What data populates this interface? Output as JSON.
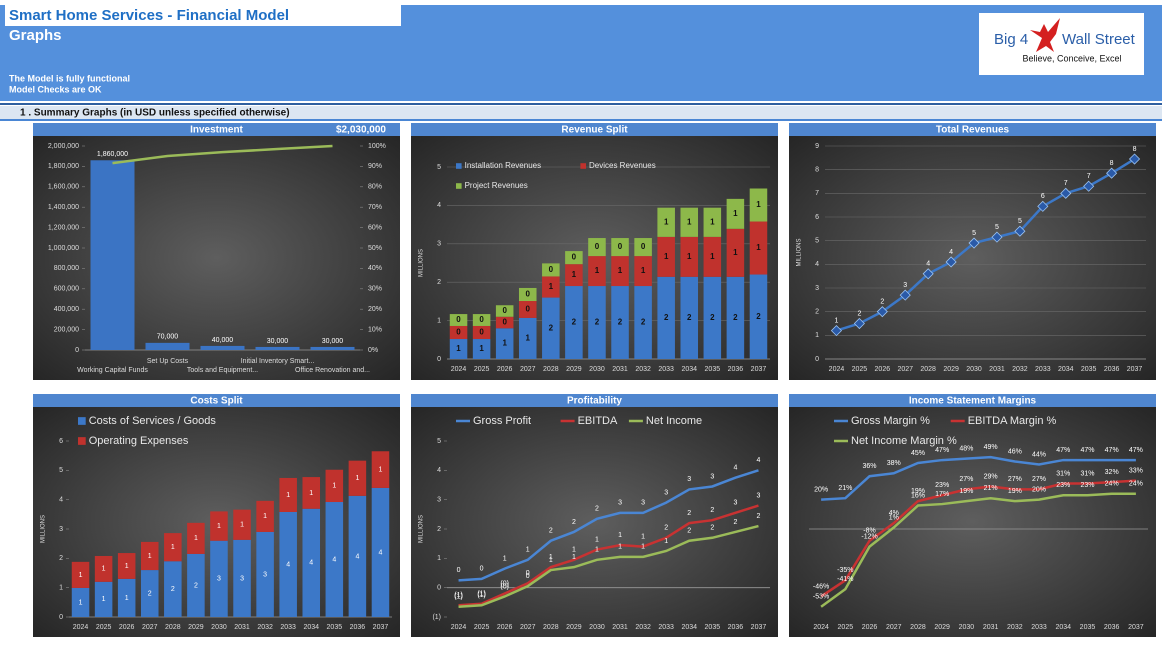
{
  "header": {
    "title": "Smart Home Services - Financial Model",
    "subtitle": "Graphs",
    "status": [
      "The Model is fully functional",
      "Model Checks are OK"
    ],
    "logo": {
      "left": "Big 4",
      "right": "Wall Street",
      "tagline": "Believe, Conceive, Excel"
    }
  },
  "section": "1 . Summary Graphs (in USD unless specified otherwise)",
  "chart_data": [
    {
      "type": "bar",
      "title": "Investment",
      "subtitle": "$2,030,000",
      "categories": [
        "Working Capital Funds",
        "Set Up Costs",
        "Tools and Equipment...",
        "Initial Inventory Smart...",
        "Office Renovation and..."
      ],
      "series": [
        {
          "color": "#3b74c4",
          "values": [
            1860000,
            70000,
            40000,
            30000,
            30000
          ],
          "value_labels": [
            "1,860,000",
            "70,000",
            "40,000",
            "30,000",
            "30,000"
          ]
        },
        {
          "type": "line",
          "axis": "y2",
          "color": "#9bbb59",
          "values": [
            91.6,
            95.1,
            97.0,
            98.5,
            100
          ]
        }
      ],
      "ylim": [
        0,
        2000000
      ],
      "yticks": [
        0,
        {
          "value": 200000,
          "label": "200,000"
        },
        {
          "value": 400000,
          "label": "400,000"
        },
        {
          "value": 600000,
          "label": "600,000"
        },
        {
          "value": 800000,
          "label": "800,000"
        },
        {
          "value": 1000000,
          "label": "1,000,000"
        },
        {
          "value": 1200000,
          "label": "1,200,000"
        },
        {
          "value": 1400000,
          "label": "1,400,000"
        },
        {
          "value": 1600000,
          "label": "1,600,000"
        },
        {
          "value": 1800000,
          "label": "1,800,000"
        },
        {
          "value": 2000000,
          "label": "2,000,000"
        }
      ],
      "y2lim": [
        0,
        100
      ],
      "y2ticks": [
        {
          "value": 0,
          "label": "0%"
        },
        {
          "value": 10,
          "label": "10%"
        },
        {
          "value": 20,
          "label": "20%"
        },
        {
          "value": 30,
          "label": "30%"
        },
        {
          "value": 40,
          "label": "40%"
        },
        {
          "value": 50,
          "label": "50%"
        },
        {
          "value": 60,
          "label": "60%"
        },
        {
          "value": 70,
          "label": "70%"
        },
        {
          "value": 80,
          "label": "80%"
        },
        {
          "value": 90,
          "label": "90%"
        },
        {
          "value": 100,
          "label": "100%"
        }
      ],
      "grid": false
    },
    {
      "type": "stacked_bar",
      "title": "Revenue Split",
      "y_label": "MILLIONS",
      "categories": [
        "2024",
        "2025",
        "2026",
        "2027",
        "2028",
        "2029",
        "2030",
        "2031",
        "2032",
        "2033",
        "2034",
        "2035",
        "2036",
        "2037"
      ],
      "series": [
        {
          "name": "Installation Revenues",
          "color": "#3c78c8",
          "values": [
            0.52,
            0.52,
            0.8,
            1.07,
            1.6,
            1.9,
            1.9,
            1.9,
            1.9,
            2.14,
            2.14,
            2.14,
            2.14,
            2.2
          ],
          "value_labels": [
            "1",
            "1",
            "1",
            "1",
            "2",
            "2",
            "2",
            "2",
            "2",
            "2",
            "2",
            "2",
            "2",
            "2"
          ]
        },
        {
          "name": "Devices Revenues",
          "color": "#c0322d",
          "values": [
            0.34,
            0.34,
            0.3,
            0.44,
            0.55,
            0.57,
            0.78,
            0.78,
            0.78,
            1.04,
            1.04,
            1.04,
            1.25,
            1.38
          ],
          "value_labels": [
            "0",
            "0",
            "0",
            "0",
            "1",
            "1",
            "1",
            "1",
            "1",
            "1",
            "1",
            "1",
            "1",
            "1"
          ]
        },
        {
          "name": "Project Revenues",
          "color": "#8db84a",
          "values": [
            0.31,
            0.31,
            0.3,
            0.34,
            0.34,
            0.34,
            0.47,
            0.47,
            0.47,
            0.76,
            0.76,
            0.76,
            0.78,
            0.86
          ],
          "value_labels": [
            "0",
            "0",
            "0",
            "0",
            "0",
            "0",
            "0",
            "0",
            "0",
            "1",
            "1",
            "1",
            "1",
            "1"
          ]
        }
      ],
      "ylim": [
        0,
        5
      ],
      "yticks": [
        0,
        1,
        2,
        3,
        4,
        5
      ],
      "grid": true
    },
    {
      "type": "line",
      "title": "Total Revenues",
      "y_label": "MILLIONS",
      "markers": true,
      "categories": [
        "2024",
        "2025",
        "2026",
        "2027",
        "2028",
        "2029",
        "2030",
        "2031",
        "2032",
        "2033",
        "2034",
        "2035",
        "2036",
        "2037"
      ],
      "series": [
        {
          "color": "#3c78c8",
          "values": [
            1.2,
            1.5,
            2.0,
            2.7,
            3.6,
            4.1,
            4.9,
            5.15,
            5.4,
            6.45,
            7.0,
            7.3,
            7.85,
            8.45
          ],
          "value_labels": [
            "1",
            "2",
            "2",
            "3",
            "4",
            "4",
            "5",
            "5",
            "5",
            "6",
            "7",
            "7",
            "8",
            "8"
          ]
        }
      ],
      "ylim": [
        0,
        9
      ],
      "yticks": [
        0,
        1,
        2,
        3,
        4,
        5,
        6,
        7,
        8,
        9
      ],
      "grid": true
    },
    {
      "type": "stacked_bar",
      "title": "Costs Split",
      "y_label": "MILLIONS",
      "categories": [
        "2024",
        "2025",
        "2026",
        "2027",
        "2028",
        "2029",
        "2030",
        "2031",
        "2032",
        "2033",
        "2034",
        "2035",
        "2036",
        "2037"
      ],
      "series": [
        {
          "name": "Costs of Services / Goods",
          "color": "#3c78c8",
          "values": [
            0.99,
            1.2,
            1.3,
            1.6,
            1.9,
            2.15,
            2.6,
            2.63,
            2.9,
            3.58,
            3.69,
            3.92,
            4.13,
            4.4
          ],
          "value_labels": [
            "1",
            "1",
            "1",
            "2",
            "2",
            "2",
            "3",
            "3",
            "3",
            "4",
            "4",
            "4",
            "4",
            "4"
          ]
        },
        {
          "name": "Operating Expenses",
          "color": "#c0322d",
          "values": [
            0.89,
            0.88,
            0.88,
            0.96,
            0.96,
            1.06,
            1.0,
            1.03,
            1.06,
            1.16,
            1.08,
            1.1,
            1.2,
            1.25
          ],
          "value_labels": [
            "1",
            "1",
            "1",
            "1",
            "1",
            "1",
            "1",
            "1",
            "1",
            "1",
            "1",
            "1",
            "1",
            "1"
          ]
        }
      ],
      "ylim": [
        0,
        6
      ],
      "yticks": [
        0,
        1,
        2,
        3,
        4,
        5,
        6
      ],
      "grid": false
    },
    {
      "type": "line",
      "title": "Profitability",
      "y_label": "MILLIONS",
      "categories": [
        "2024",
        "2025",
        "2026",
        "2027",
        "2028",
        "2029",
        "2030",
        "2031",
        "2032",
        "2033",
        "2034",
        "2035",
        "2036",
        "2037"
      ],
      "series": [
        {
          "name": "Gross Profit",
          "color": "#4a86d4",
          "values": [
            0.25,
            0.3,
            0.65,
            0.95,
            1.6,
            1.9,
            2.35,
            2.55,
            2.55,
            2.9,
            3.35,
            3.45,
            3.75,
            4.0
          ],
          "value_labels": [
            "0",
            "0",
            "1",
            "1",
            "2",
            "2",
            "2",
            "3",
            "3",
            "3",
            "3",
            "3",
            "4",
            "4"
          ]
        },
        {
          "name": "EBITDA",
          "color": "#c83232",
          "values": [
            -0.6,
            -0.55,
            -0.2,
            0.15,
            0.7,
            0.95,
            1.3,
            1.45,
            1.4,
            1.7,
            2.2,
            2.3,
            2.55,
            2.8
          ],
          "value_labels": [
            "(1)",
            "(1)",
            "(0)",
            "0",
            "1",
            "1",
            "1",
            "1",
            "1",
            "2",
            "2",
            "2",
            "3",
            "3"
          ]
        },
        {
          "name": "Net Income",
          "color": "#9bbb59",
          "values": [
            -0.65,
            -0.6,
            -0.3,
            0.05,
            0.6,
            0.7,
            0.95,
            1.05,
            1.05,
            1.25,
            1.6,
            1.7,
            1.9,
            2.1
          ],
          "value_labels": [
            "(1)",
            "(1)",
            "(0)",
            "0",
            "1",
            "1",
            "1",
            "1",
            "1",
            "1",
            "2",
            "2",
            "2",
            "2"
          ]
        }
      ],
      "ylim": [
        -1,
        5
      ],
      "yticks": [
        {
          "value": -1,
          "label": "(1)"
        },
        0,
        1,
        2,
        3,
        4,
        5
      ],
      "grid": false
    },
    {
      "type": "line",
      "title": "Income Statement Margins",
      "categories": [
        "2024",
        "2025",
        "2026",
        "2027",
        "2028",
        "2029",
        "2030",
        "2031",
        "2032",
        "2033",
        "2034",
        "2035",
        "2036",
        "2037"
      ],
      "series": [
        {
          "name": "Gross Margin %",
          "color": "#4a86d4",
          "values": [
            20,
            21,
            36,
            38,
            45,
            47,
            48,
            49,
            46,
            44,
            47,
            47,
            47,
            47
          ],
          "value_labels": [
            "20%",
            "21%",
            "36%",
            "38%",
            "45%",
            "47%",
            "48%",
            "49%",
            "46%",
            "44%",
            "47%",
            "47%",
            "47%",
            "47%"
          ]
        },
        {
          "name": "EBITDA Margin %",
          "color": "#c83232",
          "values": [
            -46,
            -35,
            -8,
            4,
            19,
            23,
            27,
            29,
            27,
            27,
            31,
            31,
            32,
            33
          ],
          "value_labels": [
            "-46%",
            "-35%",
            "-8%",
            "4%",
            "19%",
            "23%",
            "27%",
            "29%",
            "27%",
            "27%",
            "31%",
            "31%",
            "32%",
            "33%"
          ]
        },
        {
          "name": "Net Income Margin %",
          "color": "#9bbb59",
          "values": [
            -53,
            -41,
            -12,
            1,
            16,
            17,
            19,
            21,
            19,
            20,
            23,
            23,
            24,
            24
          ],
          "value_labels": [
            "-53%",
            "-41%",
            "-12%",
            "1%",
            "16%",
            "17%",
            "19%",
            "21%",
            "19%",
            "20%",
            "23%",
            "23%",
            "24%",
            "24%"
          ]
        }
      ],
      "ylim": [
        -60,
        60
      ],
      "grid": false
    }
  ]
}
